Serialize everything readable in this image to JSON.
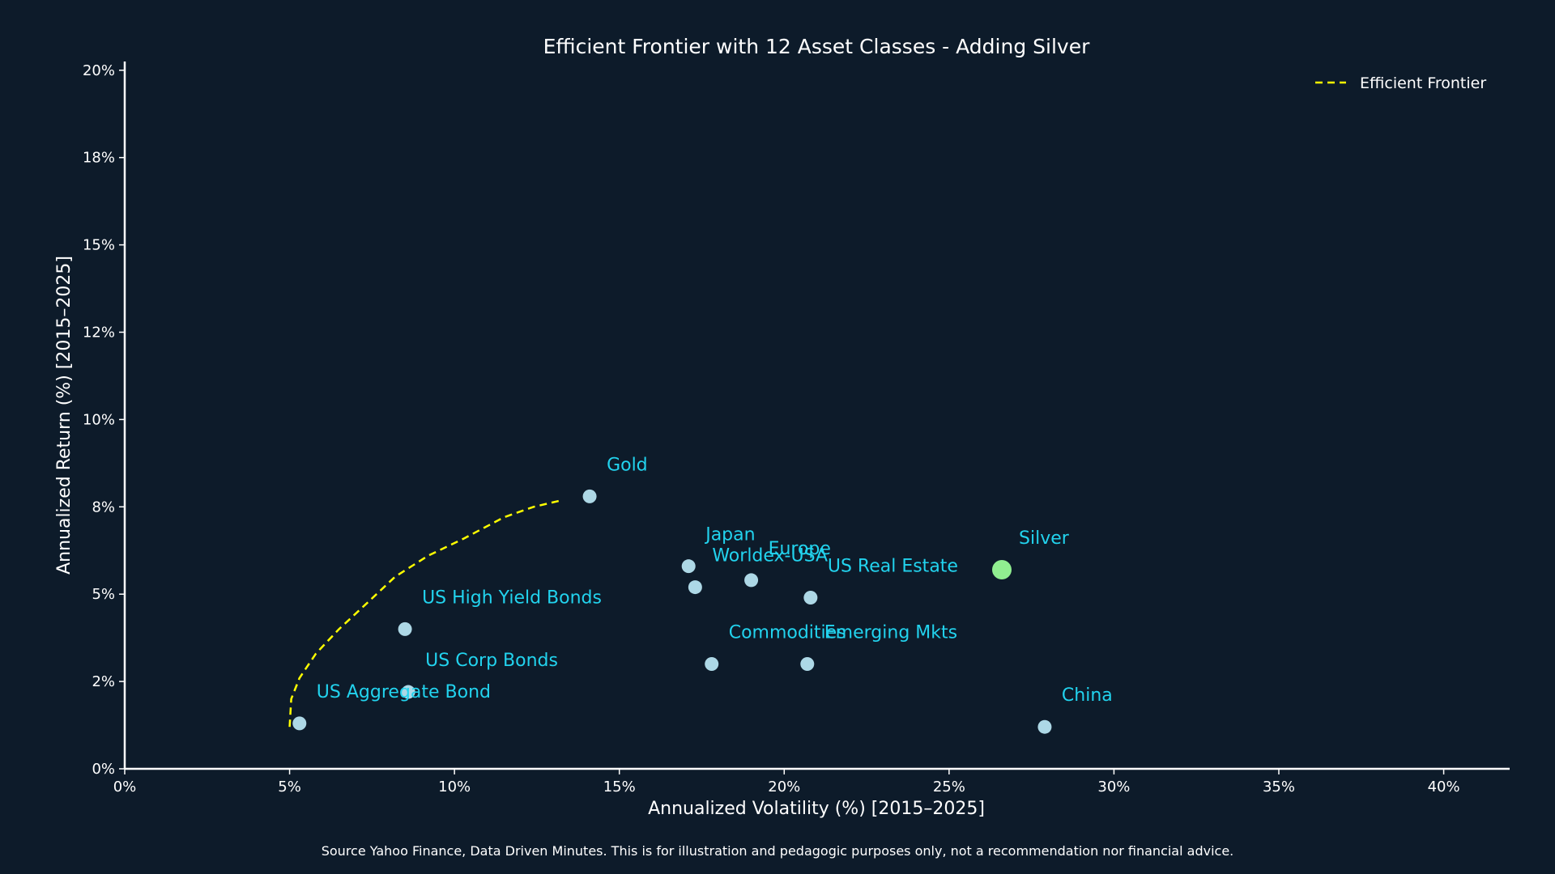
{
  "chart_data": {
    "type": "scatter",
    "title": "Efficient Frontier with 12 Asset Classes - Adding Silver",
    "xlabel": "Annualized Volatility (%) [2015–2025]",
    "ylabel": "Annualized Return (%) [2015–2025]",
    "xlim": [
      0,
      42
    ],
    "ylim": [
      0,
      20.25
    ],
    "x_ticks": [
      {
        "value": 0,
        "label": "0%"
      },
      {
        "value": 5,
        "label": "5%"
      },
      {
        "value": 10,
        "label": "10%"
      },
      {
        "value": 15,
        "label": "15%"
      },
      {
        "value": 20,
        "label": "20%"
      },
      {
        "value": 25,
        "label": "25%"
      },
      {
        "value": 30,
        "label": "30%"
      },
      {
        "value": 35,
        "label": "35%"
      },
      {
        "value": 40,
        "label": "40%"
      }
    ],
    "y_ticks": [
      {
        "value": 0,
        "label": "0%"
      },
      {
        "value": 2.5,
        "label": "2%"
      },
      {
        "value": 5,
        "label": "5%"
      },
      {
        "value": 7.5,
        "label": "8%"
      },
      {
        "value": 10,
        "label": "10%"
      },
      {
        "value": 12.5,
        "label": "12%"
      },
      {
        "value": 15,
        "label": "15%"
      },
      {
        "value": 17.5,
        "label": "18%"
      },
      {
        "value": 20,
        "label": "20%"
      }
    ],
    "grid": false,
    "legend": {
      "position": "top-right",
      "entries": [
        {
          "label": "Efficient Frontier",
          "color": "#ffff00",
          "style": "dashed"
        }
      ]
    },
    "colors": {
      "point": "#add8e6",
      "highlight": "#90ee90",
      "label": "#22d3ee",
      "frontier": "#ffff00",
      "background": "#0d1b2a"
    },
    "points": [
      {
        "name": "Gold",
        "x": 14.1,
        "y": 7.8,
        "highlight": false
      },
      {
        "name": "Japan",
        "x": 17.1,
        "y": 5.8,
        "highlight": false
      },
      {
        "name": "Europe",
        "x": 19.0,
        "y": 5.4,
        "highlight": false
      },
      {
        "name": "Worldex-USA",
        "x": 17.3,
        "y": 5.2,
        "highlight": false
      },
      {
        "name": "US Real Estate",
        "x": 20.8,
        "y": 4.9,
        "highlight": false
      },
      {
        "name": "Silver",
        "x": 26.6,
        "y": 5.7,
        "highlight": true
      },
      {
        "name": "US High Yield Bonds",
        "x": 8.5,
        "y": 4.0,
        "highlight": false
      },
      {
        "name": "Commodities",
        "x": 17.8,
        "y": 3.0,
        "highlight": false
      },
      {
        "name": "Emerging Mkts",
        "x": 20.7,
        "y": 3.0,
        "highlight": false
      },
      {
        "name": "US Corp Bonds",
        "x": 8.6,
        "y": 2.2,
        "highlight": false
      },
      {
        "name": "US Aggregate Bond",
        "x": 5.3,
        "y": 1.3,
        "highlight": false
      },
      {
        "name": "China",
        "x": 27.9,
        "y": 1.2,
        "highlight": false
      }
    ],
    "frontier": [
      {
        "x": 5.0,
        "y": 1.2
      },
      {
        "x": 5.05,
        "y": 2.0
      },
      {
        "x": 5.3,
        "y": 2.6
      },
      {
        "x": 5.8,
        "y": 3.3
      },
      {
        "x": 6.5,
        "y": 4.0
      },
      {
        "x": 7.3,
        "y": 4.7
      },
      {
        "x": 8.2,
        "y": 5.5
      },
      {
        "x": 9.2,
        "y": 6.1
      },
      {
        "x": 10.3,
        "y": 6.6
      },
      {
        "x": 11.5,
        "y": 7.2
      },
      {
        "x": 12.4,
        "y": 7.5
      },
      {
        "x": 13.3,
        "y": 7.7
      }
    ]
  },
  "source_note": "Source Yahoo Finance, Data Driven Minutes. This is for illustration and pedagogic purposes only, not a recommendation nor financial advice."
}
